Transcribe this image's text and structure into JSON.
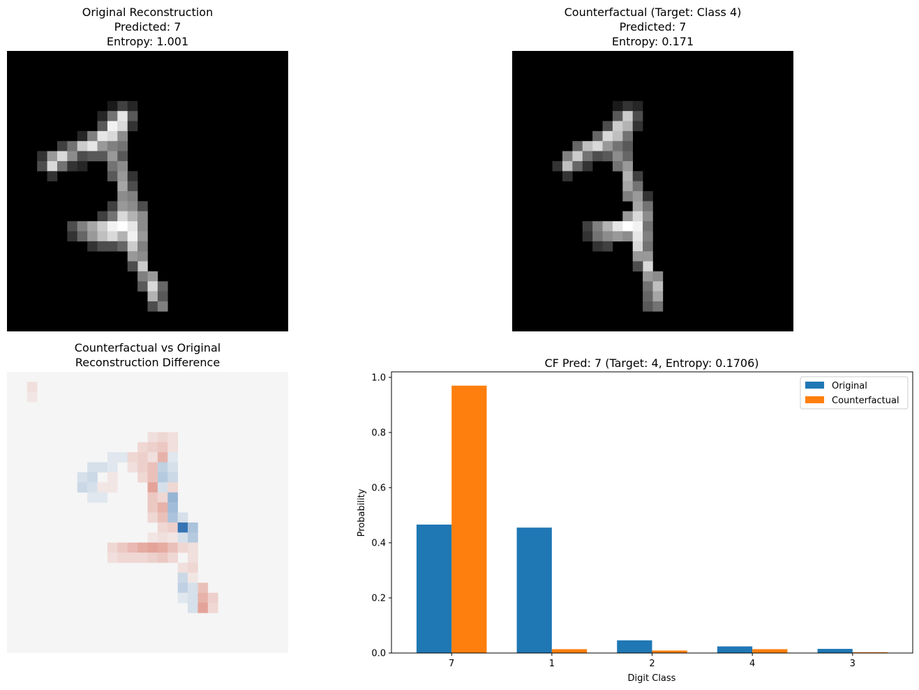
{
  "panels": {
    "original": {
      "title_line1": "Original Reconstruction",
      "title_line2": "Predicted: 7",
      "title_line3": "Entropy: 1.001"
    },
    "counterfactual": {
      "title_line1": "Counterfactual (Target: Class 4)",
      "title_line2": "Predicted: 7",
      "title_line3": "Entropy: 0.171"
    },
    "difference": {
      "title_line1": "Counterfactual vs Original",
      "title_line2": "Reconstruction Difference"
    }
  },
  "colors": {
    "original": "#1f77b4",
    "counterfactual": "#ff7f0e",
    "diff_background": "#f5f5f5",
    "diff_positive": "#f4a582",
    "diff_negative": "#4393c3"
  },
  "chart_data": {
    "type": "bar",
    "title": "CF Pred: 7 (Target: 4, Entropy: 0.1706)",
    "xlabel": "Digit Class",
    "ylabel": "Probability",
    "categories": [
      "7",
      "1",
      "2",
      "4",
      "3"
    ],
    "series": [
      {
        "name": "Original",
        "values": [
          0.466,
          0.455,
          0.046,
          0.024,
          0.015
        ]
      },
      {
        "name": "Counterfactual",
        "values": [
          0.97,
          0.014,
          0.009,
          0.014,
          0.003
        ]
      }
    ],
    "ylim": [
      0,
      1.02
    ],
    "yticks": [
      0.0,
      0.2,
      0.4,
      0.6,
      0.8,
      1.0
    ],
    "ytick_labels": [
      "0.0",
      "0.2",
      "0.4",
      "0.6",
      "0.8",
      "1.0"
    ],
    "legend_position": "top-right",
    "grid": false
  }
}
